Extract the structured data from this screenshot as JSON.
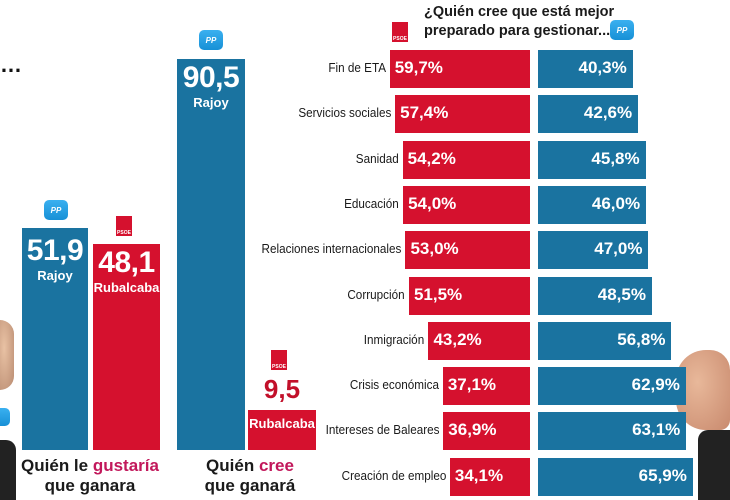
{
  "colors": {
    "pp_blue": "#1a73a0",
    "psoe_red": "#d5112e",
    "highlight": "#c2185b"
  },
  "top_left_ellipsis": "…",
  "logos": {
    "pp": "PP",
    "psoe": "PSOE"
  },
  "chart_data": [
    {
      "type": "bar",
      "title": "Quién le gustaría que ganara",
      "title_parts": [
        "Quién le ",
        "gustaría",
        "que ganara"
      ],
      "categories": [
        "Rajoy",
        "Rubalcaba"
      ],
      "values": [
        51.9,
        48.1
      ],
      "value_labels": [
        "51,9",
        "48,1"
      ],
      "colors": [
        "#1a73a0",
        "#d5112e"
      ],
      "ylim": [
        0,
        100
      ]
    },
    {
      "type": "bar",
      "title": "Quién cree que ganará",
      "title_parts": [
        "Quién ",
        "cree",
        "que ganará"
      ],
      "categories": [
        "Rajoy",
        "Rubalcaba"
      ],
      "values": [
        90.5,
        9.5
      ],
      "value_labels": [
        "90,5",
        "9,5"
      ],
      "colors": [
        "#1a73a0",
        "#d5112e"
      ],
      "ylim": [
        0,
        100
      ]
    },
    {
      "type": "bar",
      "orientation": "horizontal-diverging",
      "title": "¿Quién cree que está mejor preparado para gestionar...",
      "title_lines": [
        "¿Quién cree que está mejor",
        "preparado para gestionar..."
      ],
      "categories": [
        "Fin de ETA",
        "Servicios sociales",
        "Sanidad",
        "Educación",
        "Relaciones internacionales",
        "Corrupción",
        "Inmigración",
        "Crisis económica",
        "Intereses de Baleares",
        "Creación de empleo"
      ],
      "series": [
        {
          "name": "PSOE",
          "color": "#d5112e",
          "values": [
            59.7,
            57.4,
            54.2,
            54.0,
            53.0,
            51.5,
            43.2,
            37.1,
            36.9,
            34.1
          ],
          "labels": [
            "59,7%",
            "57,4%",
            "54,2%",
            "54,0%",
            "53,0%",
            "51,5%",
            "43,2%",
            "37,1%",
            "36,9%",
            "34,1%"
          ]
        },
        {
          "name": "PP",
          "color": "#1a73a0",
          "values": [
            40.3,
            42.6,
            45.8,
            46.0,
            47.0,
            48.5,
            56.8,
            62.9,
            63.1,
            65.9
          ],
          "labels": [
            "40,3%",
            "42,6%",
            "45,8%",
            "46,0%",
            "47,0%",
            "48,5%",
            "56,8%",
            "62,9%",
            "63,1%",
            "65,9%"
          ]
        }
      ],
      "xlabel": "",
      "ylabel": "",
      "xlim": [
        0,
        100
      ]
    }
  ]
}
